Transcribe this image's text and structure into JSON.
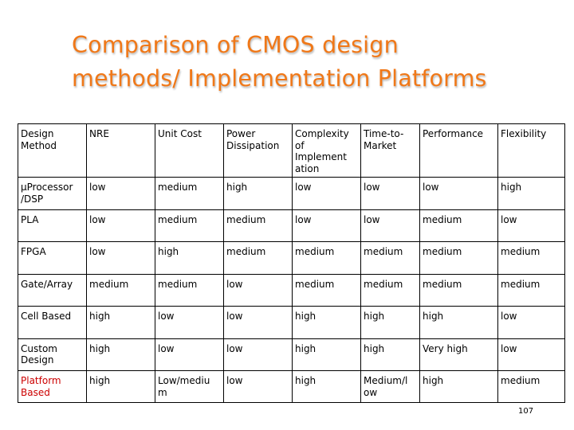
{
  "slide": {
    "title_line1": "Comparison of CMOS design",
    "title_line2": "methods/ Implementation Platforms",
    "page_number": "107"
  },
  "table": {
    "headers": [
      "Design Method",
      "NRE",
      "Unit Cost",
      "Power Dissipation",
      "Complexity of Implement ation",
      "Time-to-Market",
      "Performance",
      "Flexibility"
    ],
    "rows": [
      [
        "µProcessor /DSP",
        "low",
        "medium",
        "high",
        "low",
        "low",
        "low",
        "high"
      ],
      [
        "PLA",
        "low",
        "medium",
        "medium",
        "low",
        "low",
        "medium",
        "low"
      ],
      [
        "FPGA",
        "low",
        "high",
        "medium",
        "medium",
        "medium",
        "medium",
        "medium"
      ],
      [
        "Gate/Array",
        "medium",
        "medium",
        "low",
        "medium",
        "medium",
        "medium",
        "medium"
      ],
      [
        "Cell Based",
        "high",
        "low",
        "low",
        "high",
        "high",
        "high",
        "low"
      ],
      [
        "Custom Design",
        "high",
        "low",
        "low",
        "high",
        "high",
        "Very high",
        "low"
      ],
      [
        "Platform Based",
        "high",
        "Low/mediu m",
        "low",
        "high",
        "Medium/l ow",
        "high",
        "medium"
      ]
    ]
  }
}
